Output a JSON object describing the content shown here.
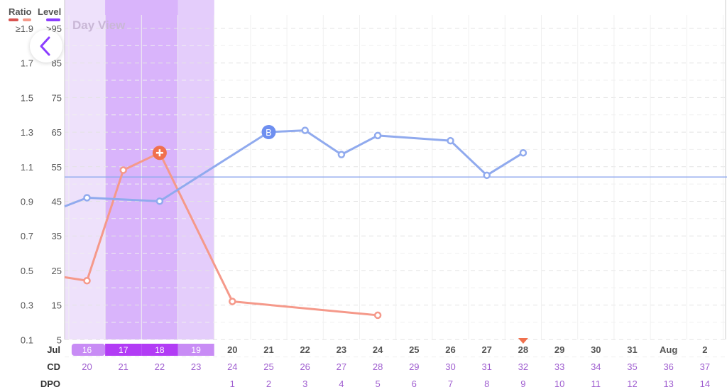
{
  "header": {
    "ratio_label": "Ratio",
    "level_label": "Level",
    "ratio_color": "#d9534f",
    "level_color": "#8b3dff"
  },
  "view_label": "Day View",
  "back_button_icon": "chevron-left-icon",
  "colors": {
    "ratio_line": "#f5998a",
    "level_line": "#90aaee",
    "fertile_light": "#eee1fb",
    "fertile_mid": "#e4cdfb",
    "peak": "#d9b4fb",
    "baseline": "#90aaee",
    "marker": "#f0704d"
  },
  "chart_data": {
    "type": "line",
    "y_left_ticks": [
      "≥1.9",
      "1.7",
      "1.5",
      "1.3",
      "1.1",
      "0.9",
      "0.7",
      "0.5",
      "0.3",
      "0.1"
    ],
    "y_right_ticks": [
      ">95",
      "85",
      "75",
      "65",
      "55",
      "45",
      "35",
      "25",
      "15",
      "5"
    ],
    "ylim_ratio": [
      0.1,
      1.9
    ],
    "ylim_level": [
      5,
      95
    ],
    "dates": [
      "16",
      "17",
      "18",
      "19",
      "20",
      "21",
      "22",
      "23",
      "24",
      "25",
      "26",
      "27",
      "28",
      "29",
      "30",
      "31",
      "Aug",
      "2"
    ],
    "month_label": "Jul",
    "cd_label": "CD",
    "cd": [
      "20",
      "21",
      "22",
      "23",
      "24",
      "25",
      "26",
      "27",
      "28",
      "29",
      "30",
      "31",
      "32",
      "33",
      "34",
      "35",
      "36",
      "37"
    ],
    "dpo_label": "DPO",
    "dpo": [
      "",
      "",
      "",
      "",
      "1",
      "2",
      "3",
      "4",
      "5",
      "6",
      "7",
      "8",
      "9",
      "10",
      "11",
      "12",
      "13",
      "14"
    ],
    "highlighted_dates": [
      "16",
      "17",
      "18",
      "19"
    ],
    "peak_dates": [
      "17",
      "18"
    ],
    "today_date": "28",
    "baseline_level": 52,
    "series": [
      {
        "key": "ratio",
        "points": [
          {
            "date_index": 0,
            "value": 0.44
          },
          {
            "date_index": 1,
            "value": 1.08
          },
          {
            "date_index": 2,
            "value": 1.18,
            "marker": "+"
          },
          {
            "date_index": 4,
            "value": 0.32
          },
          {
            "date_index": 8,
            "value": 0.24
          }
        ],
        "leading_value": 0.46
      },
      {
        "key": "level",
        "points": [
          {
            "date_index": 0,
            "value": 46
          },
          {
            "date_index": 2,
            "value": 45
          },
          {
            "date_index": 5,
            "value": 65,
            "marker": "B"
          },
          {
            "date_index": 6,
            "value": 65.5
          },
          {
            "date_index": 7,
            "value": 58.5
          },
          {
            "date_index": 8,
            "value": 64
          },
          {
            "date_index": 10,
            "value": 62.5
          },
          {
            "date_index": 11,
            "value": 52.5
          },
          {
            "date_index": 12,
            "value": 59
          }
        ],
        "leading_value": 43.5
      }
    ]
  }
}
